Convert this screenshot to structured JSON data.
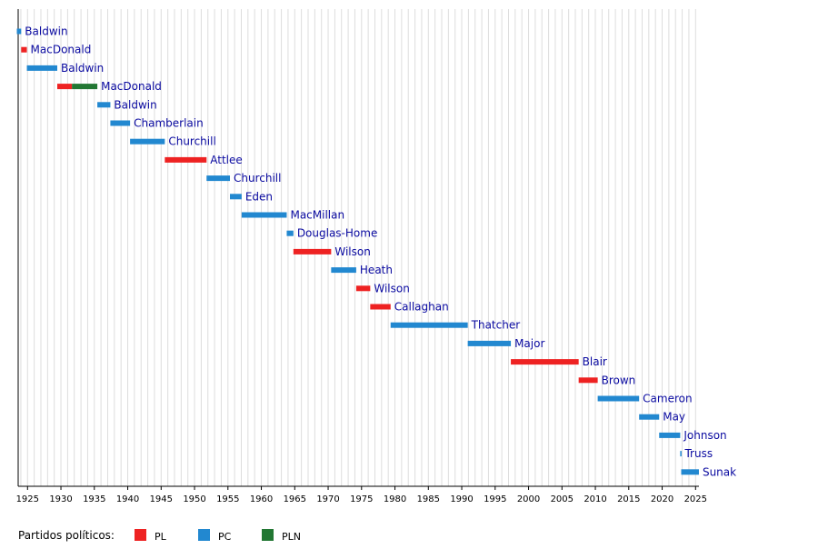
{
  "legend": {
    "title": "Partidos políticos:",
    "items": [
      {
        "key": "PL",
        "label": "PL",
        "color": "#ee2222"
      },
      {
        "key": "PC",
        "label": "PC",
        "color": "#2288d0"
      },
      {
        "key": "PLN",
        "label": "PLN",
        "color": "#227733"
      }
    ]
  },
  "chart_data": {
    "type": "bar",
    "orientation": "horizontal-timeline",
    "xlim": [
      1923,
      2025
    ],
    "x_ticks": [
      1925,
      1930,
      1935,
      1940,
      1945,
      1950,
      1955,
      1960,
      1965,
      1970,
      1975,
      1980,
      1985,
      1990,
      1995,
      2000,
      2005,
      2010,
      2015,
      2020,
      2025
    ],
    "grid": "vertical, yearly",
    "bars": [
      {
        "name": "Baldwin",
        "segments": [
          {
            "start": 1923.4,
            "end": 1924.05,
            "party": "PC"
          }
        ]
      },
      {
        "name": "MacDonald",
        "segments": [
          {
            "start": 1924.05,
            "end": 1924.9,
            "party": "PL"
          }
        ]
      },
      {
        "name": "Baldwin",
        "segments": [
          {
            "start": 1924.9,
            "end": 1929.45,
            "party": "PC"
          }
        ]
      },
      {
        "name": "MacDonald",
        "segments": [
          {
            "start": 1929.45,
            "end": 1931.65,
            "party": "PL"
          },
          {
            "start": 1931.65,
            "end": 1935.45,
            "party": "PLN"
          }
        ]
      },
      {
        "name": "Baldwin",
        "segments": [
          {
            "start": 1935.45,
            "end": 1937.4,
            "party": "PC"
          }
        ]
      },
      {
        "name": "Chamberlain",
        "segments": [
          {
            "start": 1937.4,
            "end": 1940.35,
            "party": "PC"
          }
        ]
      },
      {
        "name": "Churchill",
        "segments": [
          {
            "start": 1940.35,
            "end": 1945.55,
            "party": "PC"
          }
        ]
      },
      {
        "name": "Attlee",
        "segments": [
          {
            "start": 1945.55,
            "end": 1951.8,
            "party": "PL"
          }
        ]
      },
      {
        "name": "Churchill",
        "segments": [
          {
            "start": 1951.8,
            "end": 1955.3,
            "party": "PC"
          }
        ]
      },
      {
        "name": "Eden",
        "segments": [
          {
            "start": 1955.3,
            "end": 1957.05,
            "party": "PC"
          }
        ]
      },
      {
        "name": "MacMillan",
        "segments": [
          {
            "start": 1957.05,
            "end": 1963.8,
            "party": "PC"
          }
        ]
      },
      {
        "name": "Douglas-Home",
        "segments": [
          {
            "start": 1963.8,
            "end": 1964.8,
            "party": "PC"
          }
        ]
      },
      {
        "name": "Wilson",
        "segments": [
          {
            "start": 1964.8,
            "end": 1970.45,
            "party": "PL"
          }
        ]
      },
      {
        "name": "Heath",
        "segments": [
          {
            "start": 1970.45,
            "end": 1974.2,
            "party": "PC"
          }
        ]
      },
      {
        "name": "Wilson",
        "segments": [
          {
            "start": 1974.2,
            "end": 1976.3,
            "party": "PL"
          }
        ]
      },
      {
        "name": "Callaghan",
        "segments": [
          {
            "start": 1976.3,
            "end": 1979.35,
            "party": "PL"
          }
        ]
      },
      {
        "name": "Thatcher",
        "segments": [
          {
            "start": 1979.35,
            "end": 1990.9,
            "party": "PC"
          }
        ]
      },
      {
        "name": "Major",
        "segments": [
          {
            "start": 1990.9,
            "end": 1997.35,
            "party": "PC"
          }
        ]
      },
      {
        "name": "Blair",
        "segments": [
          {
            "start": 1997.35,
            "end": 2007.5,
            "party": "PL"
          }
        ]
      },
      {
        "name": "Brown",
        "segments": [
          {
            "start": 2007.5,
            "end": 2010.35,
            "party": "PL"
          }
        ]
      },
      {
        "name": "Cameron",
        "segments": [
          {
            "start": 2010.35,
            "end": 2016.55,
            "party": "PC"
          }
        ]
      },
      {
        "name": "May",
        "segments": [
          {
            "start": 2016.55,
            "end": 2019.55,
            "party": "PC"
          }
        ]
      },
      {
        "name": "Johnson",
        "segments": [
          {
            "start": 2019.55,
            "end": 2022.7,
            "party": "PC"
          }
        ]
      },
      {
        "name": "Truss",
        "segments": [
          {
            "start": 2022.7,
            "end": 2022.85,
            "party": "PC"
          }
        ]
      },
      {
        "name": "Sunak",
        "segments": [
          {
            "start": 2022.85,
            "end": 2025.5,
            "party": "PC"
          }
        ]
      }
    ]
  }
}
